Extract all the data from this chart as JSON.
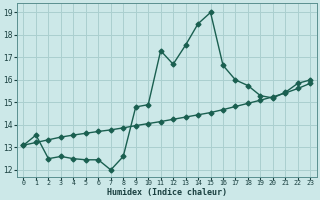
{
  "title": "",
  "xlabel": "Humidex (Indice chaleur)",
  "bg_color": "#cce8e8",
  "grid_color": "#aacfcf",
  "line_color": "#1a5f50",
  "x_data": [
    0,
    1,
    2,
    3,
    4,
    5,
    6,
    7,
    8,
    9,
    10,
    11,
    12,
    13,
    14,
    15,
    16,
    17,
    18,
    19,
    20,
    21,
    22,
    23
  ],
  "y_jagged": [
    13.1,
    13.55,
    12.5,
    12.6,
    12.5,
    12.45,
    12.45,
    12.0,
    12.6,
    14.8,
    14.9,
    17.3,
    16.7,
    17.55,
    18.5,
    19.0,
    16.65,
    16.0,
    15.75,
    15.3,
    15.2,
    15.45,
    15.85,
    16.0
  ],
  "y_trend": [
    13.1,
    13.22,
    13.34,
    13.46,
    13.55,
    13.63,
    13.71,
    13.78,
    13.87,
    13.97,
    14.06,
    14.15,
    14.25,
    14.35,
    14.45,
    14.55,
    14.68,
    14.82,
    14.96,
    15.1,
    15.25,
    15.42,
    15.62,
    15.85
  ],
  "xlim": [
    -0.5,
    23.5
  ],
  "ylim": [
    11.7,
    19.4
  ],
  "yticks": [
    12,
    13,
    14,
    15,
    16,
    17,
    18,
    19
  ],
  "xticks": [
    0,
    1,
    2,
    3,
    4,
    5,
    6,
    7,
    8,
    9,
    10,
    11,
    12,
    13,
    14,
    15,
    16,
    17,
    18,
    19,
    20,
    21,
    22,
    23
  ],
  "marker": "D",
  "markersize": 2.5,
  "linewidth": 1.0
}
